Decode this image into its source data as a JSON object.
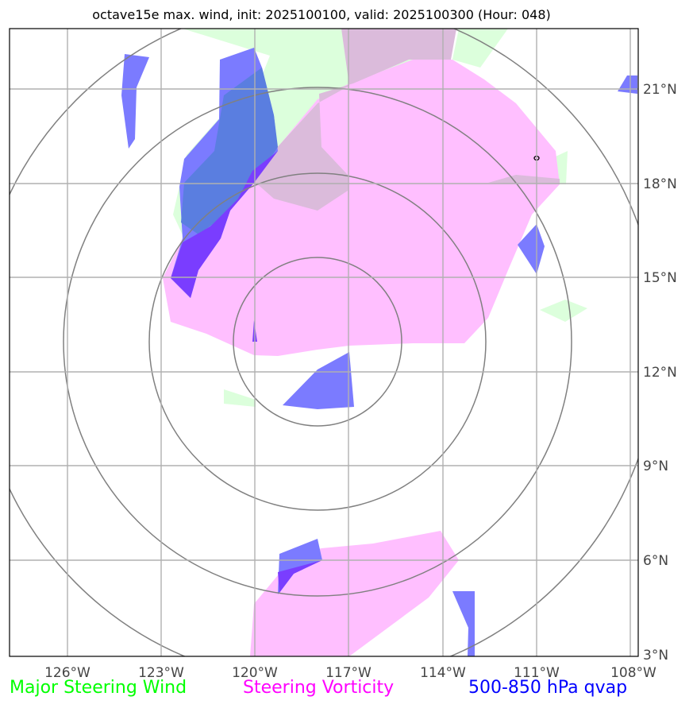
{
  "title": "octave15e max. wind, init: 2025100100, valid: 2025100300 (Hour: 048)",
  "lon_labels": [
    "126°W",
    "123°W",
    "120°W",
    "117°W",
    "114°W",
    "111°W",
    "108°W"
  ],
  "lat_labels": [
    "21°N",
    "18°N",
    "15°N",
    "12°N",
    "9°N",
    "6°N",
    "3°N"
  ],
  "legend": {
    "wind": {
      "label": "Major Steering Wind",
      "color": "#00ff00"
    },
    "vorticity": {
      "label": "Steering Vorticity",
      "color": "#ff00ff"
    },
    "qvap": {
      "label": "500-850 hPa qvap",
      "color": "#0000ff"
    }
  },
  "colors": {
    "wind_fill": "#dcffdc",
    "vorticity_fill": "#ffbfff",
    "overlap_fill": "#dbbbdb",
    "qvap_fill": "#7b7bff",
    "qvap_dark": "#7a3dff",
    "qvap_overlap": "#5a7ee0",
    "range_rings": "#808080",
    "gridlines": "#b0b0b0"
  }
}
